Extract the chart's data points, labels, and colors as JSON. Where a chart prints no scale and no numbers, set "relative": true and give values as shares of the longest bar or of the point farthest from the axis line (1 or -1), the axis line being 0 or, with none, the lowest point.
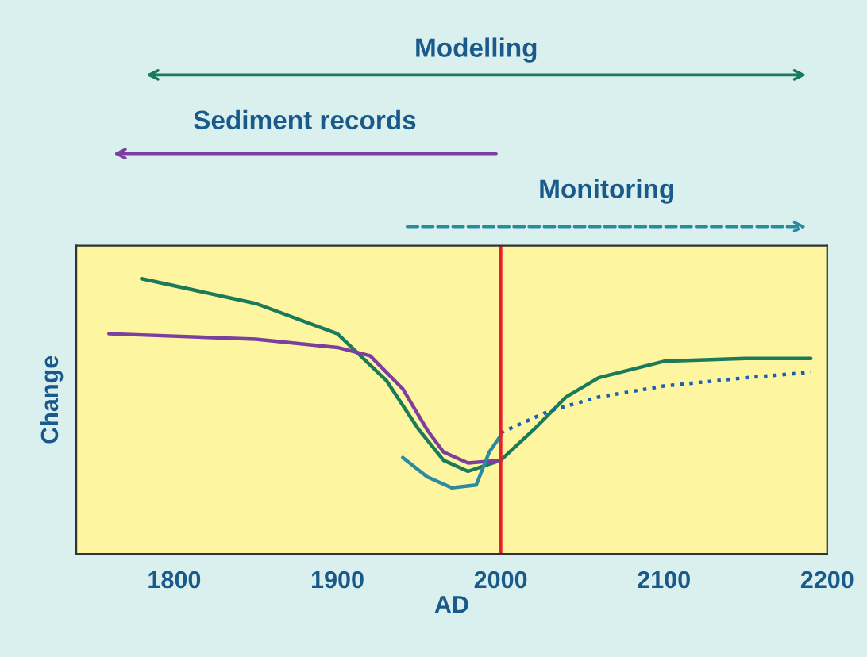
{
  "chart_data": {
    "type": "line",
    "relative": true,
    "xlabel": "AD",
    "ylabel": "Change",
    "xlim": [
      1740,
      2200
    ],
    "xticks": [
      1800,
      1900,
      2000,
      2100,
      2200
    ],
    "grid": false,
    "marker": "none",
    "annotations": [
      "Modelling",
      "Sediment records",
      "Monitoring"
    ],
    "ref_lines": [
      {
        "axis": "x",
        "value": 2000,
        "color": "#e8202a"
      }
    ],
    "series": [
      {
        "color": "#1b7a5a",
        "x": [
          1780,
          1850,
          1900,
          1930,
          1950,
          1965,
          1980,
          2000,
          2020,
          2040,
          2060,
          2100,
          2150,
          2190
        ],
        "values": [
          1.0,
          0.91,
          0.8,
          0.63,
          0.45,
          0.34,
          0.3,
          0.34,
          0.45,
          0.57,
          0.64,
          0.7,
          0.71,
          0.71
        ]
      },
      {
        "color": "#7b3f9e",
        "x": [
          1760,
          1850,
          1900,
          1920,
          1940,
          1955,
          1965,
          1980,
          2000
        ],
        "values": [
          0.8,
          0.78,
          0.75,
          0.72,
          0.6,
          0.45,
          0.37,
          0.33,
          0.34
        ]
      },
      {
        "color": "#2a8aa0",
        "x": [
          1940,
          1955,
          1970,
          1985,
          1993,
          2000
        ],
        "values": [
          0.35,
          0.28,
          0.24,
          0.25,
          0.37,
          0.43
        ]
      },
      {
        "color": "#1a5fb4",
        "line_style": "dotted",
        "x": [
          2000,
          2030,
          2060,
          2100,
          2150,
          2190
        ],
        "values": [
          0.44,
          0.52,
          0.57,
          0.61,
          0.64,
          0.66
        ]
      }
    ]
  }
}
